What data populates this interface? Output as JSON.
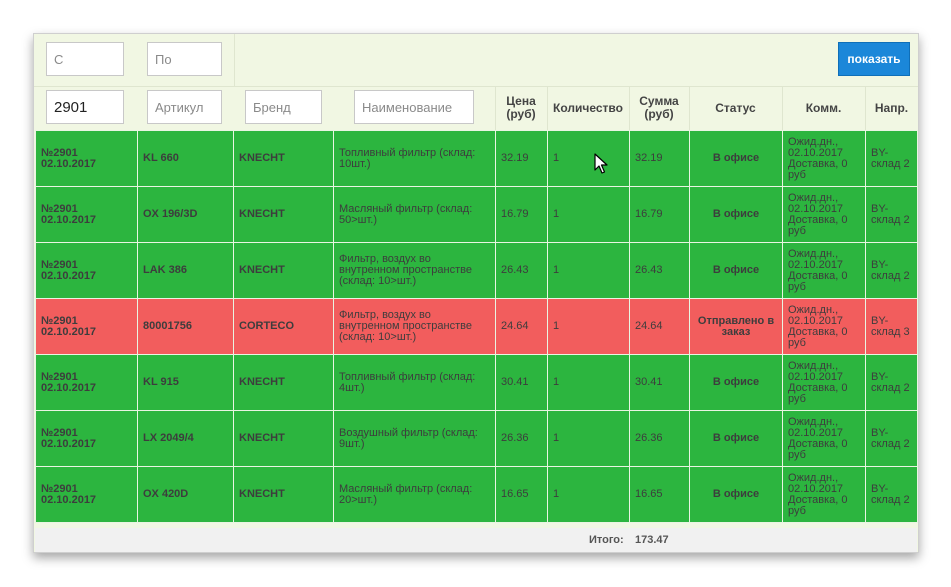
{
  "filters": {
    "from_placeholder": "С",
    "to_placeholder": "По",
    "order_value": "2901",
    "article_placeholder": "Артикул",
    "brand_placeholder": "Бренд",
    "name_placeholder": "Наименование",
    "show_button": "показать"
  },
  "headers": {
    "price": "Цена (руб)",
    "quantity": "Количество",
    "sum": "Сумма (руб)",
    "status": "Статус",
    "comment": "Комм.",
    "direction": "Напр."
  },
  "rows": [
    {
      "order": "№2901",
      "date": "02.10.2017",
      "article": "KL 660",
      "brand": "KNECHT",
      "name": "Топливный фильтр (склад: 10шт.)",
      "price": "32.19",
      "qty": "1",
      "sum": "32.19",
      "status": "В офисе",
      "comment": "Ожид.дн., 02.10.2017 Доставка, 0 руб",
      "direction": "BY-склад 2",
      "state": "green"
    },
    {
      "order": "№2901",
      "date": "02.10.2017",
      "article": "OX 196/3D",
      "brand": "KNECHT",
      "name": "Масляный фильтр (склад: 50>шт.)",
      "price": "16.79",
      "qty": "1",
      "sum": "16.79",
      "status": "В офисе",
      "comment": "Ожид.дн., 02.10.2017 Доставка, 0 руб",
      "direction": "BY-склад 2",
      "state": "green"
    },
    {
      "order": "№2901",
      "date": "02.10.2017",
      "article": "LAK 386",
      "brand": "KNECHT",
      "name": "Фильтр, воздух во внутренном пространстве (склад: 10>шт.)",
      "price": "26.43",
      "qty": "1",
      "sum": "26.43",
      "status": "В офисе",
      "comment": "Ожид.дн., 02.10.2017 Доставка, 0 руб",
      "direction": "BY-склад 2",
      "state": "green"
    },
    {
      "order": "№2901",
      "date": "02.10.2017",
      "article": "80001756",
      "brand": "CORTECO",
      "name": "Фильтр, воздух во внутренном пространстве (склад: 10>шт.)",
      "price": "24.64",
      "qty": "1",
      "sum": "24.64",
      "status": "Отправлено в заказ",
      "comment": "Ожид.дн., 02.10.2017 Доставка, 0 руб",
      "direction": "BY-склад 3",
      "state": "red"
    },
    {
      "order": "№2901",
      "date": "02.10.2017",
      "article": "KL 915",
      "brand": "KNECHT",
      "name": "Топливный фильтр (склад: 4шт.)",
      "price": "30.41",
      "qty": "1",
      "sum": "30.41",
      "status": "В офисе",
      "comment": "Ожид.дн., 02.10.2017 Доставка, 0 руб",
      "direction": "BY-склад 2",
      "state": "green"
    },
    {
      "order": "№2901",
      "date": "02.10.2017",
      "article": "LX 2049/4",
      "brand": "KNECHT",
      "name": "Воздушный фильтр (склад: 9шт.)",
      "price": "26.36",
      "qty": "1",
      "sum": "26.36",
      "status": "В офисе",
      "comment": "Ожид.дн., 02.10.2017 Доставка, 0 руб",
      "direction": "BY-склад 2",
      "state": "green"
    },
    {
      "order": "№2901",
      "date": "02.10.2017",
      "article": "OX 420D",
      "brand": "KNECHT",
      "name": "Масляный фильтр (склад: 20>шт.)",
      "price": "16.65",
      "qty": "1",
      "sum": "16.65",
      "status": "В офисе",
      "comment": "Ожид.дн., 02.10.2017 Доставка, 0 руб",
      "direction": "BY-склад 2",
      "state": "green"
    }
  ],
  "footer": {
    "total_label": "Итого:",
    "total_value": "173.47"
  },
  "colors": {
    "row_green": "#2cb53f",
    "row_red": "#f25d5d",
    "button_blue": "#1b87d9",
    "panel_bg": "#f1f7e3"
  },
  "icons": [
    "mouse-pointer-icon"
  ]
}
